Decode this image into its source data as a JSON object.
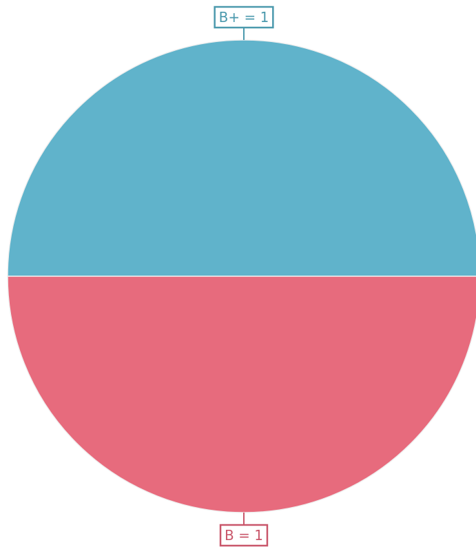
{
  "chart_data": {
    "type": "pie",
    "title": "",
    "slices": [
      {
        "label": "B+",
        "value": 1,
        "display": "B+ = 1",
        "color": "#60b3cb",
        "label_color": "#4b99ad"
      },
      {
        "label": "B",
        "value": 1,
        "display": "B = 1",
        "color": "#e76b7d",
        "label_color": "#c9566a"
      }
    ],
    "legend": "none",
    "separator_color": "#f0f0f0"
  }
}
